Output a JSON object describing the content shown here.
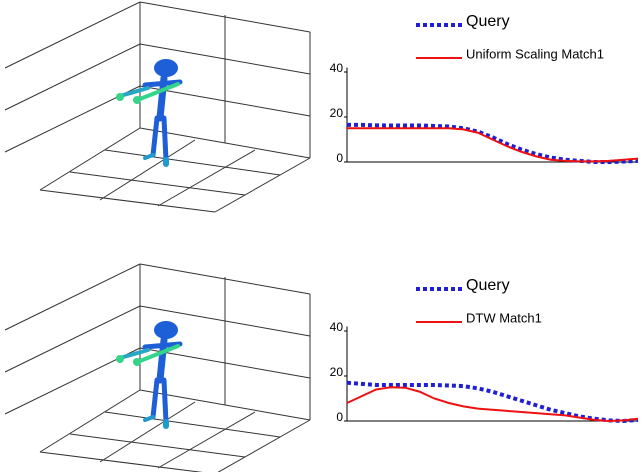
{
  "chart_data": [
    {
      "type": "line",
      "x": [
        0,
        1,
        2,
        3,
        4,
        5,
        6,
        7,
        8,
        9,
        10,
        11,
        12,
        13,
        14,
        15,
        16,
        17,
        18,
        19,
        20
      ],
      "xlim": [
        0,
        20
      ],
      "ylim": [
        0,
        42
      ],
      "yticks": [
        0,
        20,
        40
      ],
      "series": [
        {
          "name": "Query",
          "color": "#1f1fd6",
          "linestyle": "dotted",
          "values": [
            16.5,
            16.5,
            16.3,
            16.2,
            16.2,
            16.2,
            16,
            15.8,
            15,
            13.5,
            11,
            8,
            5.5,
            3.5,
            2,
            1,
            0.5,
            0,
            0,
            0.2,
            0.5
          ]
        },
        {
          "name": "Uniform Scaling Match1",
          "color": "#ee1111",
          "linestyle": "solid",
          "values": [
            15,
            15,
            15,
            15,
            15,
            15,
            15,
            15,
            14.5,
            13,
            10,
            7,
            4.5,
            2.5,
            1,
            0.5,
            0.3,
            0.3,
            0.5,
            1,
            1.5
          ]
        }
      ]
    },
    {
      "type": "line",
      "x": [
        0,
        1,
        2,
        3,
        4,
        5,
        6,
        7,
        8,
        9,
        10,
        11,
        12,
        13,
        14,
        15,
        16,
        17,
        18,
        19,
        20
      ],
      "xlim": [
        0,
        20
      ],
      "ylim": [
        0,
        42
      ],
      "yticks": [
        0,
        20,
        40
      ],
      "series": [
        {
          "name": "Query",
          "color": "#1f1fd6",
          "linestyle": "dotted",
          "values": [
            17,
            16.5,
            16,
            16,
            16,
            16,
            16,
            15.8,
            15.5,
            14.5,
            13,
            11,
            9,
            7,
            5,
            3.5,
            2,
            1,
            0.3,
            0,
            0.5
          ]
        },
        {
          "name": "DTW Match1",
          "color": "#ee1111",
          "linestyle": "solid",
          "values": [
            8,
            11,
            14,
            15,
            14.8,
            13,
            10,
            8,
            6.5,
            5.5,
            5,
            4.5,
            4,
            3.5,
            3,
            2.5,
            1.5,
            0.5,
            0,
            0.3,
            1
          ]
        }
      ]
    }
  ]
}
